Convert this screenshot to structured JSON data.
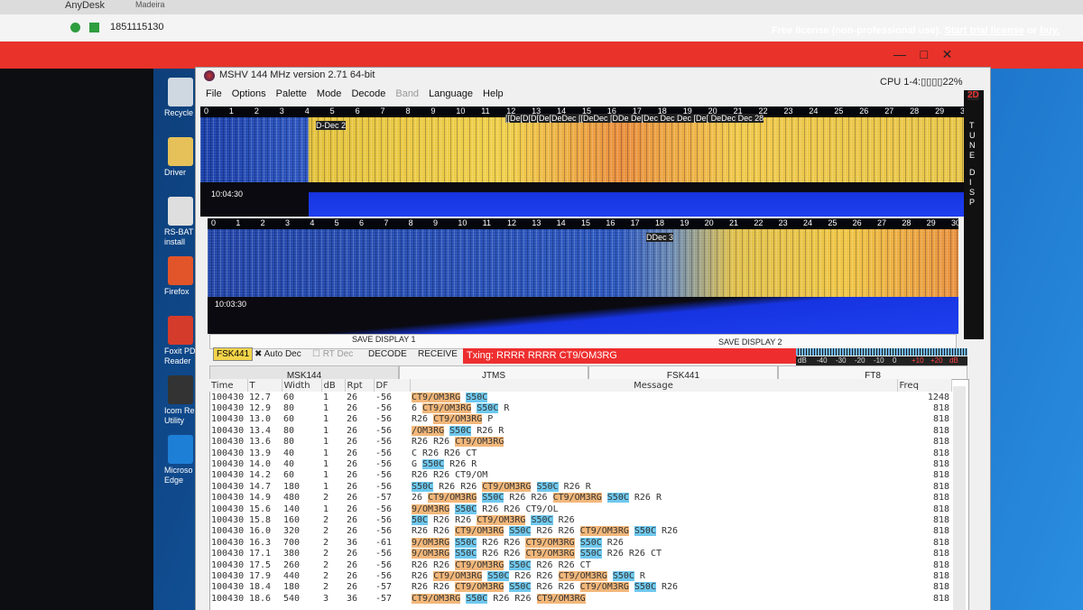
{
  "browser": {
    "tabs": [
      "AnyDesk",
      "Madeira"
    ],
    "address": "1851115130"
  },
  "banner": {
    "text": "Free license (non-professional use).",
    "link": "Start trial license",
    "or": "or",
    "buy": "buy."
  },
  "desktop_icons": [
    {
      "lines": [
        "Recycle B"
      ]
    },
    {
      "lines": [
        "Driver"
      ]
    },
    {
      "lines": [
        "RS-BAT",
        "install"
      ]
    },
    {
      "lines": [
        "Firefox"
      ]
    },
    {
      "lines": [
        "Foxit PD",
        "Reader"
      ]
    },
    {
      "lines": [
        "Icom Rem",
        "Utility"
      ]
    },
    {
      "lines": [
        "Microso",
        "Edge"
      ]
    }
  ],
  "window": {
    "title": "MSHV 144 MHz version 2.71 64-bit",
    "cpu": "CPU 1-4:",
    "cpu_pct": "22%",
    "menu": [
      "File",
      "Options",
      "Palette",
      "Mode",
      "Decode",
      "Band",
      "Language",
      "Help"
    ]
  },
  "waterfall": {
    "scale_1": [
      "0",
      "1",
      "2",
      "3",
      "4",
      "5",
      "6",
      "7",
      "8",
      "9",
      "10",
      "11",
      "12",
      "13",
      "14",
      "15",
      "16",
      "17",
      "18",
      "19",
      "20",
      "21",
      "22",
      "23",
      "24",
      "25",
      "26",
      "27",
      "28",
      "29",
      "30"
    ],
    "scale_2": [
      "0",
      "1",
      "2",
      "3",
      "4",
      "5",
      "6",
      "7",
      "8",
      "9",
      "10",
      "11",
      "12",
      "13",
      "14",
      "15",
      "16",
      "17",
      "18",
      "19",
      "20",
      "21",
      "22",
      "23",
      "24",
      "25",
      "26",
      "27",
      "28",
      "29",
      "30"
    ],
    "label_1": "D-Dec 2",
    "overlay_1": "[[De[D[D[De[DeDec [[DeDec [DDe De[Dec Dec Dec [De[ DeDec Dec 28",
    "time_1": "10:04:30",
    "label_2": "DDec 3",
    "time_2": "10:03:30",
    "side": [
      "T",
      "U",
      "N",
      "E",
      "D",
      "I",
      "S",
      "P"
    ],
    "mode_2d": "2D"
  },
  "controls": {
    "save_1": "SAVE DISPLAY 1",
    "save_2": "SAVE DISPLAY 2",
    "mode": "FSK441",
    "auto_dec": "Auto Dec",
    "rt_dec": "RT Dec",
    "decode": "DECODE",
    "receive": "RECEIVE",
    "tx": "Txing: RRRR RRRR CT9/OM3RG",
    "db_scale": [
      "dB",
      "-40",
      "-30",
      "-20",
      "-10",
      "0",
      "+10",
      "+20",
      "dB"
    ]
  },
  "tabs": [
    "MSK144",
    "JTMS",
    "FSK441",
    "FT8"
  ],
  "table": {
    "headers": [
      "Time",
      "T",
      "Width",
      "dB",
      "Rpt",
      "DF",
      "Message",
      "Freq"
    ],
    "rows": [
      [
        "100430",
        "12.7",
        "60",
        "1",
        "26",
        "-56",
        "CT9/OM3RG S50C",
        "1248"
      ],
      [
        "100430",
        "12.9",
        "80",
        "1",
        "26",
        "-56",
        "6 CT9/OM3RG S50C R",
        "818"
      ],
      [
        "100430",
        "13.0",
        "60",
        "1",
        "26",
        "-56",
        "R26 CT9/OM3RG P",
        "818"
      ],
      [
        "100430",
        "13.4",
        "80",
        "1",
        "26",
        "-56",
        "/OM3RG S50C R26 R",
        "818"
      ],
      [
        "100430",
        "13.6",
        "80",
        "1",
        "26",
        "-56",
        "R26 R26 CT9/OM3RG",
        "818"
      ],
      [
        "100430",
        "13.9",
        "40",
        "1",
        "26",
        "-56",
        "C R26 R26 CT",
        "818"
      ],
      [
        "100430",
        "14.0",
        "40",
        "1",
        "26",
        "-56",
        "G S50C R26 R",
        "818"
      ],
      [
        "100430",
        "14.2",
        "60",
        "1",
        "26",
        "-56",
        "R26 R26 CT9/OM",
        "818"
      ],
      [
        "100430",
        "14.7",
        "180",
        "1",
        "26",
        "-56",
        "S50C R26 R26 CT9/OM3RG S50C R26 R",
        "818"
      ],
      [
        "100430",
        "14.9",
        "480",
        "2",
        "26",
        "-57",
        "26 CT9/OM3RG S50C R26 R26 CT9/OM3RG S50C R26 R",
        "818"
      ],
      [
        "100430",
        "15.6",
        "140",
        "1",
        "26",
        "-56",
        "9/OM3RG S50C R26 R26 CT9/OL",
        "818"
      ],
      [
        "100430",
        "15.8",
        "160",
        "2",
        "26",
        "-56",
        "50C R26 R26 CT9/OM3RG S50C R26",
        "818"
      ],
      [
        "100430",
        "16.0",
        "320",
        "2",
        "26",
        "-56",
        "R26 R26 CT9/OM3RG S50C R26 R26 CT9/OM3RG S50C R26",
        "818"
      ],
      [
        "100430",
        "16.3",
        "700",
        "2",
        "36",
        "-61",
        "9/OM3RG S50C R26 R26 CT9/OM3RG S50C R26",
        "818"
      ],
      [
        "100430",
        "17.1",
        "380",
        "2",
        "26",
        "-56",
        "9/OM3RG S50C R26 R26 CT9/OM3RG S50C R26 R26 CT",
        "818"
      ],
      [
        "100430",
        "17.5",
        "260",
        "2",
        "26",
        "-56",
        "R26 R26 CT9/OM3RG S50C R26 R26 CT",
        "818"
      ],
      [
        "100430",
        "17.9",
        "440",
        "2",
        "26",
        "-56",
        "R26 CT9/OM3RG S50C R26 R26 CT9/OM3RG S50C R",
        "818"
      ],
      [
        "100430",
        "18.4",
        "180",
        "2",
        "26",
        "-57",
        "R26 R26 CT9/OM3RG S50C R26 R26 CT9/OM3RG S50C R26",
        "818"
      ],
      [
        "100430",
        "18.6",
        "540",
        "3",
        "36",
        "-57",
        "CT9/OM3RG S50C R26 R26 CT9/OM3RG",
        "818"
      ]
    ]
  }
}
